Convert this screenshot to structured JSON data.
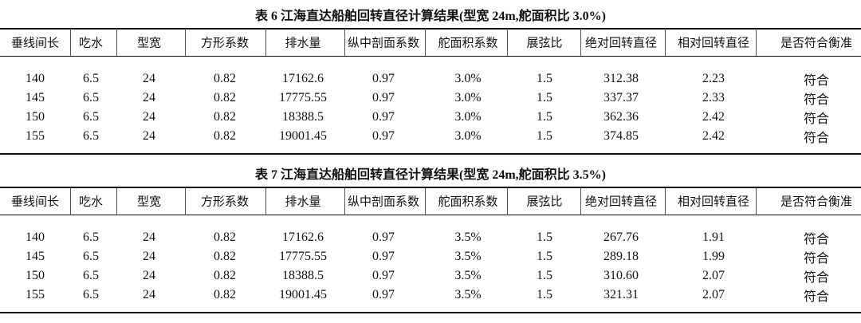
{
  "tables": [
    {
      "title": "表 6  江海直达船舶回转直径计算结果(型宽 24m,舵面积比 3.0%)",
      "headers": [
        "垂线间长",
        "吃水",
        "型宽",
        "方形系数",
        "排水量",
        "纵中剖面系数",
        "舵面积系数",
        "展弦比",
        "绝对回转直径",
        "相对回转直径",
        "是否符合衡准"
      ],
      "rows": [
        [
          "140",
          "6.5",
          "24",
          "0.82",
          "17162.6",
          "0.97",
          "3.0%",
          "1.5",
          "312.38",
          "2.23",
          "符合"
        ],
        [
          "145",
          "6.5",
          "24",
          "0.82",
          "17775.55",
          "0.97",
          "3.0%",
          "1.5",
          "337.37",
          "2.33",
          "符合"
        ],
        [
          "150",
          "6.5",
          "24",
          "0.82",
          "18388.5",
          "0.97",
          "3.0%",
          "1.5",
          "362.36",
          "2.42",
          "符合"
        ],
        [
          "155",
          "6.5",
          "24",
          "0.82",
          "19001.45",
          "0.97",
          "3.0%",
          "1.5",
          "374.85",
          "2.42",
          "符合"
        ]
      ]
    },
    {
      "title": "表 7  江海直达船舶回转直径计算结果(型宽 24m,舵面积比 3.5%)",
      "headers": [
        "垂线间长",
        "吃水",
        "型宽",
        "方形系数",
        "排水量",
        "纵中剖面系数",
        "舵面积系数",
        "展弦比",
        "绝对回转直径",
        "相对回转直径",
        "是否符合衡准"
      ],
      "rows": [
        [
          "140",
          "6.5",
          "24",
          "0.82",
          "17162.6",
          "0.97",
          "3.5%",
          "1.5",
          "267.76",
          "1.91",
          "符合"
        ],
        [
          "145",
          "6.5",
          "24",
          "0.82",
          "17775.55",
          "0.97",
          "3.5%",
          "1.5",
          "289.18",
          "1.99",
          "符合"
        ],
        [
          "150",
          "6.5",
          "24",
          "0.82",
          "18388.5",
          "0.97",
          "3.5%",
          "1.5",
          "310.60",
          "2.07",
          "符合"
        ],
        [
          "155",
          "6.5",
          "24",
          "0.82",
          "19001.45",
          "0.97",
          "3.5%",
          "1.5",
          "321.31",
          "2.07",
          "符合"
        ]
      ]
    }
  ]
}
